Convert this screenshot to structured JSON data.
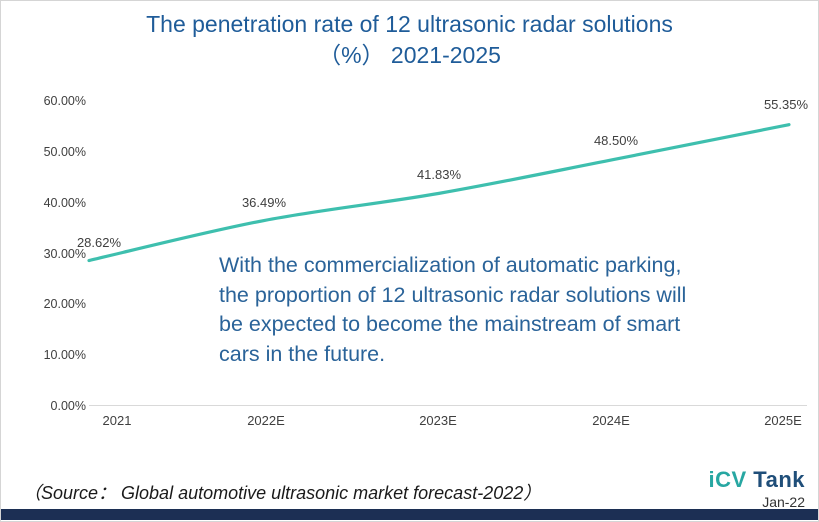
{
  "header": {
    "title_line1": "The penetration rate of 12 ultrasonic radar solutions",
    "title_line2": "（%） 2021-2025"
  },
  "annotation": {
    "lines": [
      "With the commercialization of automatic parking,",
      "the proportion of 12 ultrasonic radar solutions will",
      "be expected to become the mainstream of smart",
      "cars in the future."
    ]
  },
  "footer": {
    "source": "（Source： Global automotive ultrasonic market forecast-2022）",
    "logo_part1": "iCV",
    "logo_part2": " Tank",
    "date": "Jan-22"
  },
  "colors": {
    "title_blue": "#1f5c99",
    "annotation_blue": "#2a6399",
    "line_teal": "#3ebfae",
    "logo_teal": "#27a7a2",
    "logo_navy": "#1f4e79",
    "bottom_bar_navy": "#1c2f54",
    "axis_gray": "#d9d9d9",
    "tick_label_gray": "#3f3f3f"
  },
  "chart_data": {
    "type": "line",
    "title": "The penetration rate of 12 ultrasonic radar solutions （%） 2021-2025",
    "categories": [
      "2021",
      "2022E",
      "2023E",
      "2024E",
      "2025E"
    ],
    "values": [
      28.62,
      36.49,
      41.83,
      48.5,
      55.35
    ],
    "point_labels": [
      "28.62%",
      "36.49%",
      "41.83%",
      "48.50%",
      "55.35%"
    ],
    "y_tick_values": [
      0,
      10,
      20,
      30,
      40,
      50,
      60
    ],
    "y_tick_labels": [
      "0.00%",
      "10.00%",
      "20.00%",
      "30.00%",
      "40.00%",
      "50.00%",
      "60.00%"
    ],
    "ylim": [
      0,
      60
    ],
    "xlabel": "",
    "ylabel": "",
    "grid": false,
    "legend": false,
    "line_smoothed": true
  }
}
